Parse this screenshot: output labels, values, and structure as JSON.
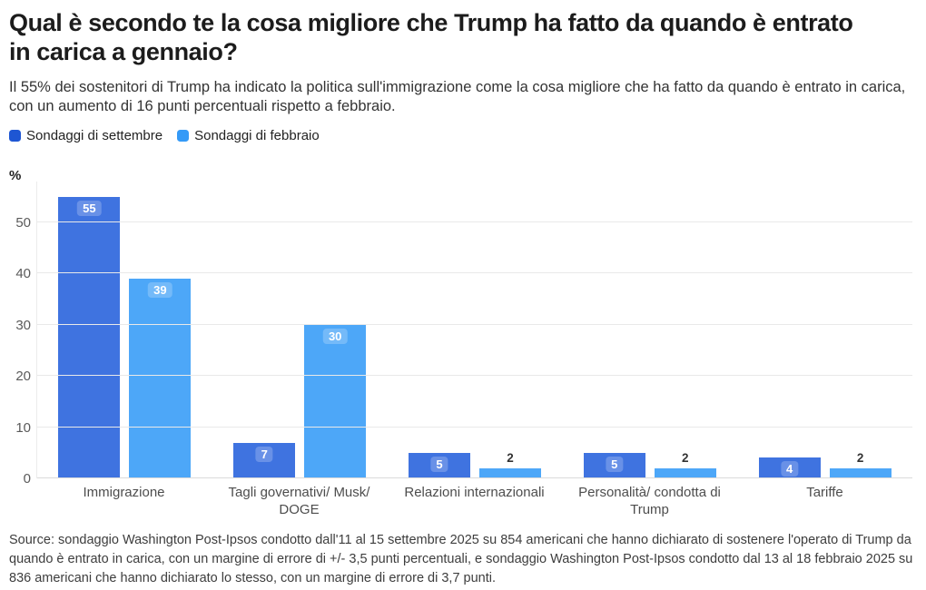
{
  "header": {
    "title": "Qual è secondo te la cosa migliore che Trump ha fatto da quando è entrato in carica a gennaio?",
    "subtitle": "Il 55% dei sostenitori di Trump ha indicato la politica sull'immigrazione come la cosa migliore che ha fatto da quando è entrato in carica, con un aumento di 16 punti percentuali rispetto a febbraio."
  },
  "legend": [
    {
      "label": "Sondaggi di settembre",
      "swatch_color": "#1e56d3"
    },
    {
      "label": "Sondaggi di febbraio",
      "swatch_color": "#349af7"
    }
  ],
  "chart_data": {
    "type": "bar",
    "title": "Qual è secondo te la cosa migliore che Trump ha fatto da quando è entrato in carica a gennaio?",
    "unit_label": "%",
    "ylabel": "%",
    "xlabel": "",
    "categories": [
      "Immigrazione",
      "Tagli governativi/ Musk/ DOGE",
      "Relazioni internazionali",
      "Personalità/ condotta di Trump",
      "Tariffe"
    ],
    "series": [
      {
        "name": "Sondaggi di settembre",
        "color": "#3f73e0",
        "values": [
          55,
          7,
          5,
          5,
          4
        ]
      },
      {
        "name": "Sondaggi di febbraio",
        "color": "#4da7f8",
        "values": [
          39,
          30,
          2,
          2,
          2
        ]
      }
    ],
    "yticks": [
      0,
      10,
      20,
      30,
      40,
      50
    ],
    "ylim": [
      0,
      58
    ],
    "grid": true,
    "legend_position": "top-left",
    "value_labels": "on-bars"
  },
  "footer": {
    "source": "Source: sondaggio Washington Post-Ipsos condotto dall'11 al 15 settembre 2025 su 854 americani che hanno dichiarato di sostenere l'operato di Trump da quando è entrato in carica, con un margine di errore di +/- 3,5 punti percentuali, e sondaggio Washington Post-Ipsos condotto dal 13 al 18 febbraio 2025 su 836 americani che hanno dichiarato lo stesso, con un margine di errore di 3,7 punti."
  }
}
